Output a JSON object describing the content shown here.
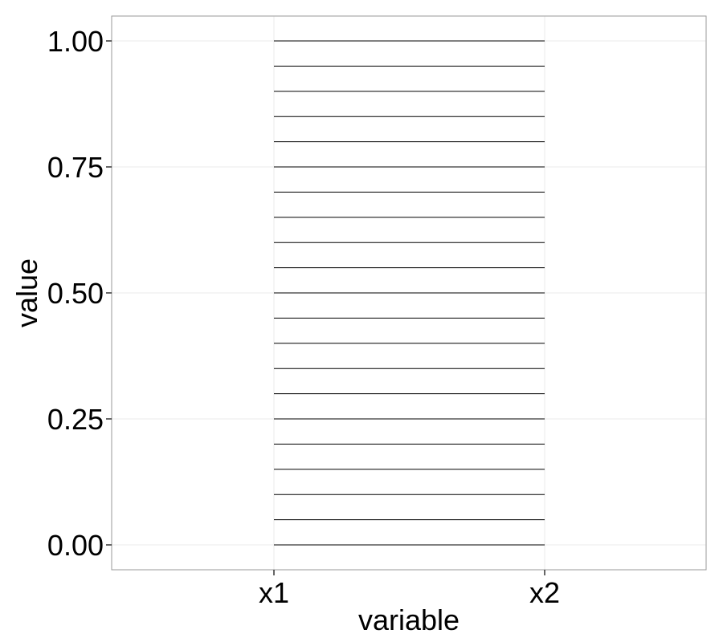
{
  "chart_data": {
    "type": "line",
    "xlabel": "variable",
    "ylabel": "value",
    "categories": [
      "x1",
      "x2"
    ],
    "y_ticks": [
      0.0,
      0.25,
      0.5,
      0.75,
      1.0
    ],
    "y_tick_labels": [
      "0.00",
      "0.25",
      "0.50",
      "0.75",
      "1.00"
    ],
    "ylim": [
      -0.05,
      1.05
    ],
    "grid": true,
    "series_color": "#000000",
    "segments": [
      {
        "x1": 0.0,
        "x2": 0.0
      },
      {
        "x1": 0.05,
        "x2": 0.05
      },
      {
        "x1": 0.1,
        "x2": 0.1
      },
      {
        "x1": 0.15,
        "x2": 0.15
      },
      {
        "x1": 0.2,
        "x2": 0.2
      },
      {
        "x1": 0.25,
        "x2": 0.25
      },
      {
        "x1": 0.3,
        "x2": 0.3
      },
      {
        "x1": 0.35,
        "x2": 0.35
      },
      {
        "x1": 0.4,
        "x2": 0.4
      },
      {
        "x1": 0.45,
        "x2": 0.45
      },
      {
        "x1": 0.5,
        "x2": 0.5
      },
      {
        "x1": 0.55,
        "x2": 0.55
      },
      {
        "x1": 0.6,
        "x2": 0.6
      },
      {
        "x1": 0.65,
        "x2": 0.65
      },
      {
        "x1": 0.7,
        "x2": 0.7
      },
      {
        "x1": 0.75,
        "x2": 0.75
      },
      {
        "x1": 0.8,
        "x2": 0.8
      },
      {
        "x1": 0.85,
        "x2": 0.85
      },
      {
        "x1": 0.9,
        "x2": 0.9
      },
      {
        "x1": 0.95,
        "x2": 0.95
      },
      {
        "x1": 1.0,
        "x2": 1.0
      }
    ]
  }
}
